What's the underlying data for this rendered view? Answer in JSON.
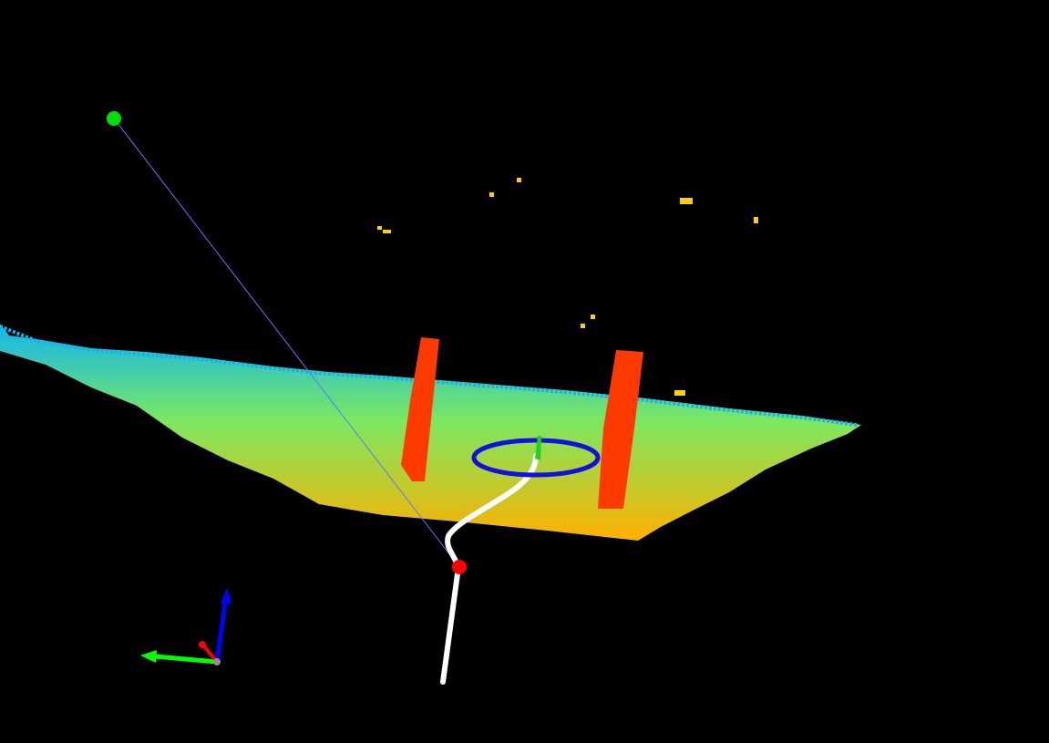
{
  "scene": {
    "background": "#000000",
    "colors": {
      "floor_far": "#10b4f0",
      "floor_mid": "#7be860",
      "floor_near": "#ffb000",
      "obstacle": "#ff3a00",
      "path": "#ffffff",
      "goal_ring": "#1010e0",
      "start_marker": "#00e000",
      "robot_marker": "#ff0000",
      "ray": "#5a78ff",
      "noise_points": "#ffd000",
      "axis_x": "#ff0000",
      "axis_y": "#00ff00",
      "axis_z": "#0000ff"
    },
    "icons": {
      "start": "green-sphere-marker",
      "robot": "red-sphere-marker",
      "goal": "blue-ring-marker",
      "axes": "xyz-axes-gizmo"
    }
  }
}
